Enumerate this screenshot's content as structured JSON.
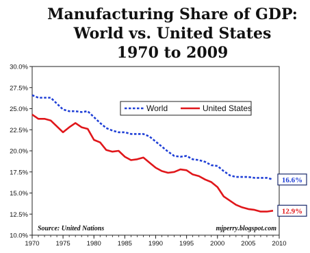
{
  "chart_data": {
    "type": "line",
    "title_lines": [
      "Manufacturing Share of GDP:",
      "World vs. United States",
      "1970 to 2009"
    ],
    "xlabel": "",
    "ylabel": "",
    "xlim": [
      1970,
      2010
    ],
    "ylim": [
      10.0,
      30.0
    ],
    "x_ticks": [
      1970,
      1975,
      1980,
      1985,
      1990,
      1995,
      2000,
      2005,
      2010
    ],
    "y_ticks": [
      {
        "value": 10.0,
        "label": "10.0%"
      },
      {
        "value": 12.5,
        "label": "12.5%"
      },
      {
        "value": 15.0,
        "label": "15.0%"
      },
      {
        "value": 17.5,
        "label": "17.5%"
      },
      {
        "value": 20.0,
        "label": "20.0%"
      },
      {
        "value": 22.5,
        "label": "22.5%"
      },
      {
        "value": 25.0,
        "label": "25.0%"
      },
      {
        "value": 27.5,
        "label": "27.5%"
      },
      {
        "value": 30.0,
        "label": "30.0%"
      }
    ],
    "grid": false,
    "legend_position": "top-right",
    "x": [
      1970,
      1971,
      1972,
      1973,
      1974,
      1975,
      1976,
      1977,
      1978,
      1979,
      1980,
      1981,
      1982,
      1983,
      1984,
      1985,
      1986,
      1987,
      1988,
      1989,
      1990,
      1991,
      1992,
      1993,
      1994,
      1995,
      1996,
      1997,
      1998,
      1999,
      2000,
      2001,
      2002,
      2003,
      2004,
      2005,
      2006,
      2007,
      2008,
      2009
    ],
    "series": [
      {
        "name": "World",
        "color": "#1f3fd6",
        "dash": "dotted",
        "end_label": "16.6%",
        "values": [
          26.6,
          26.3,
          26.3,
          26.3,
          25.6,
          24.9,
          24.7,
          24.7,
          24.6,
          24.7,
          24.0,
          23.3,
          22.7,
          22.4,
          22.2,
          22.2,
          22.0,
          22.0,
          22.0,
          21.7,
          21.1,
          20.5,
          19.9,
          19.4,
          19.3,
          19.4,
          19.0,
          18.9,
          18.7,
          18.3,
          18.2,
          17.6,
          17.1,
          16.9,
          16.9,
          16.9,
          16.8,
          16.8,
          16.8,
          16.6
        ]
      },
      {
        "name": "United States",
        "color": "#e0161a",
        "dash": "solid",
        "end_label": "12.9%",
        "values": [
          24.3,
          23.8,
          23.8,
          23.6,
          22.9,
          22.2,
          22.8,
          23.3,
          22.8,
          22.6,
          21.3,
          21.0,
          20.1,
          19.9,
          20.0,
          19.3,
          18.9,
          19.0,
          19.2,
          18.6,
          18.0,
          17.6,
          17.4,
          17.5,
          17.8,
          17.7,
          17.2,
          17.0,
          16.6,
          16.3,
          15.7,
          14.6,
          14.1,
          13.6,
          13.3,
          13.1,
          13.0,
          12.8,
          12.8,
          12.9
        ]
      }
    ],
    "source_note": "Source: United Nations",
    "credit": "mjperry.blogspot.com"
  }
}
